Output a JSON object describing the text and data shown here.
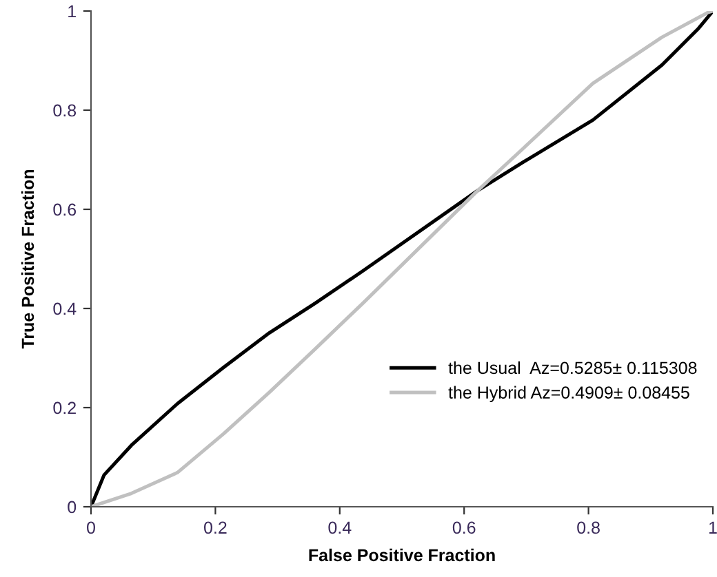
{
  "chart_data": {
    "type": "line",
    "xlabel": "False Positive Fraction",
    "ylabel": "True Positive Fraction",
    "xlim": [
      0,
      1
    ],
    "ylim": [
      0,
      1
    ],
    "xticks": [
      0,
      0.2,
      0.4,
      0.6,
      0.8,
      1
    ],
    "yticks": [
      0,
      0.2,
      0.4,
      0.6,
      0.8,
      1
    ],
    "grid": false,
    "legend": "bottom right",
    "marker": "none",
    "line_style": "solid",
    "series": [
      {
        "name": "the Usual  Az=0.5285± 0.115308",
        "color": "#000000",
        "x": [
          0,
          0.021,
          0.065,
          0.139,
          0.213,
          0.287,
          0.361,
          0.4375,
          0.622,
          0.696,
          0.807,
          0.918,
          0.977,
          1
        ],
        "values": [
          0,
          0.064,
          0.124,
          0.208,
          0.281,
          0.351,
          0.411,
          0.476,
          0.638,
          0.696,
          0.78,
          0.891,
          0.965,
          1
        ]
      },
      {
        "name": "the Hybrid Az=0.4909± 0.08455",
        "color": "#c0c0c0",
        "x": [
          0,
          0.065,
          0.139,
          0.213,
          0.287,
          0.361,
          0.4375,
          0.622,
          0.696,
          0.807,
          0.918,
          0.992,
          1
        ],
        "values": [
          0,
          0.027,
          0.069,
          0.147,
          0.231,
          0.319,
          0.411,
          0.638,
          0.724,
          0.854,
          0.947,
          0.997,
          1
        ]
      }
    ]
  }
}
